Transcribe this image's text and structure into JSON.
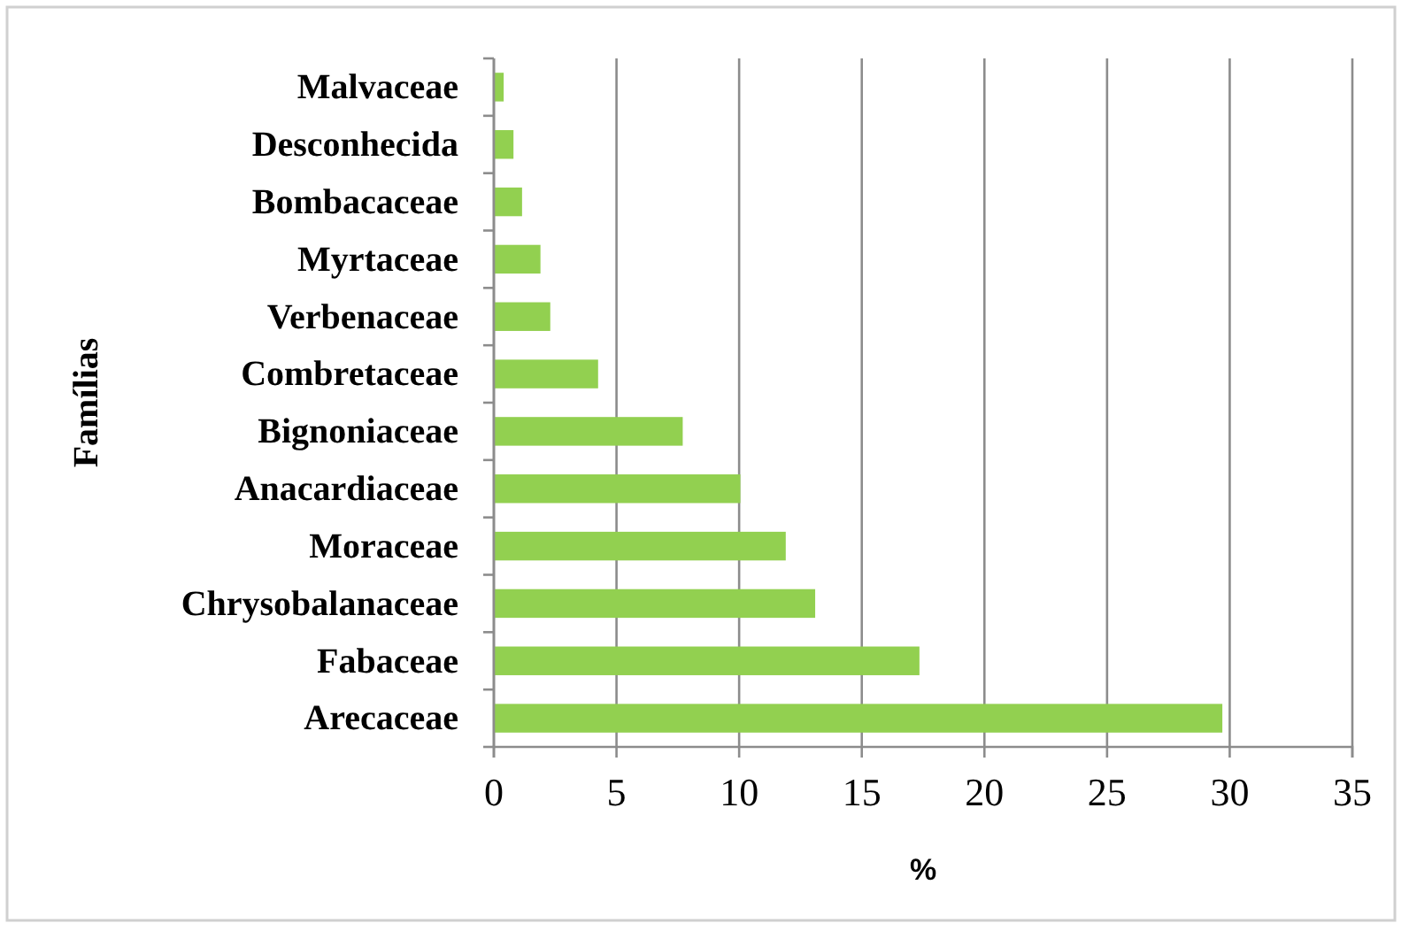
{
  "chart_data": {
    "type": "bar",
    "orientation": "horizontal",
    "xlabel": "%",
    "ylabel": "Famílias",
    "categories": [
      "Malvaceae",
      "Desconhecida",
      "Bombacaceae",
      "Myrtaceae",
      "Verbenaceae",
      "Combretaceae",
      "Bignoniaceae",
      "Anacardiaceae",
      "Moraceae",
      "Chrysobalanaceae",
      "Fabaceae",
      "Arecaceae"
    ],
    "values": [
      0.4,
      0.8,
      1.15,
      1.9,
      2.3,
      4.25,
      7.7,
      10.05,
      11.9,
      13.1,
      17.35,
      29.7
    ],
    "color": "#92d050",
    "xlim": [
      0,
      35
    ],
    "xticks": [
      0,
      5,
      10,
      15,
      20,
      25,
      30,
      35
    ],
    "grid": "x"
  }
}
